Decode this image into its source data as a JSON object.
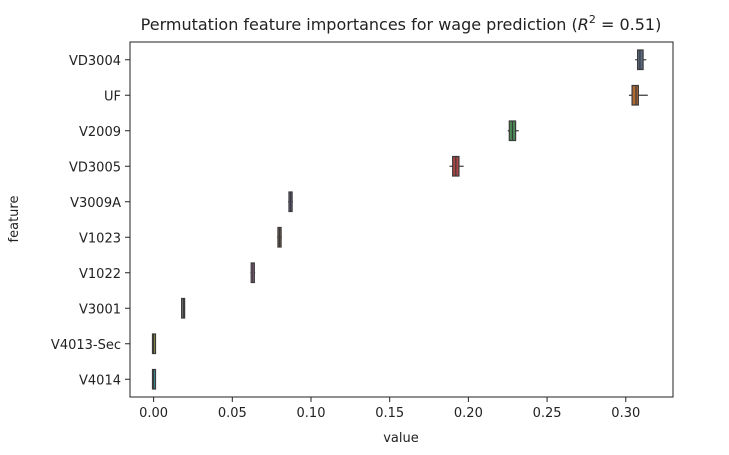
{
  "chart_data": {
    "type": "boxplot",
    "title": "Permutation feature importances for wage prediction (",
    "title_math": "R",
    "title_sup": "2",
    "title_tail": " = 0.51)",
    "xlabel": "value",
    "ylabel": "feature",
    "xlim": [
      -0.015,
      0.33
    ],
    "xticks": [
      0.0,
      0.05,
      0.1,
      0.15,
      0.2,
      0.25,
      0.3
    ],
    "xtick_labels": [
      "0.00",
      "0.05",
      "0.10",
      "0.15",
      "0.20",
      "0.25",
      "0.30"
    ],
    "grid": false,
    "features": [
      {
        "name": "VD3004",
        "min": 0.306,
        "q1": 0.3075,
        "median": 0.309,
        "q3": 0.311,
        "max": 0.313,
        "color": "#5a6b86"
      },
      {
        "name": "UF",
        "min": 0.302,
        "q1": 0.304,
        "median": 0.3065,
        "q3": 0.308,
        "max": 0.314,
        "color": "#b06a34"
      },
      {
        "name": "V2009",
        "min": 0.225,
        "q1": 0.226,
        "median": 0.228,
        "q3": 0.23,
        "max": 0.232,
        "color": "#4a8a55"
      },
      {
        "name": "VD3005",
        "min": 0.188,
        "q1": 0.19,
        "median": 0.192,
        "q3": 0.194,
        "max": 0.197,
        "color": "#b04545"
      },
      {
        "name": "V3009A",
        "min": 0.0855,
        "q1": 0.086,
        "median": 0.087,
        "q3": 0.088,
        "max": 0.0885,
        "color": "#7d6aa0"
      },
      {
        "name": "V1023",
        "min": 0.0785,
        "q1": 0.079,
        "median": 0.08,
        "q3": 0.081,
        "max": 0.0815,
        "color": "#8a6a52"
      },
      {
        "name": "V1022",
        "min": 0.0615,
        "q1": 0.062,
        "median": 0.063,
        "q3": 0.064,
        "max": 0.0645,
        "color": "#c07fb5"
      },
      {
        "name": "V3001",
        "min": 0.0175,
        "q1": 0.018,
        "median": 0.019,
        "q3": 0.0195,
        "max": 0.02,
        "color": "#808080"
      },
      {
        "name": "V4013-Sec",
        "min": 0.0,
        "q1": 0.0,
        "median": 0.0,
        "q3": 0.0005,
        "max": 0.001,
        "color": "#a0a040"
      },
      {
        "name": "V4014",
        "min": 0.0,
        "q1": 0.0,
        "median": 0.0,
        "q3": 0.0005,
        "max": 0.001,
        "color": "#3aa8b8"
      }
    ]
  }
}
